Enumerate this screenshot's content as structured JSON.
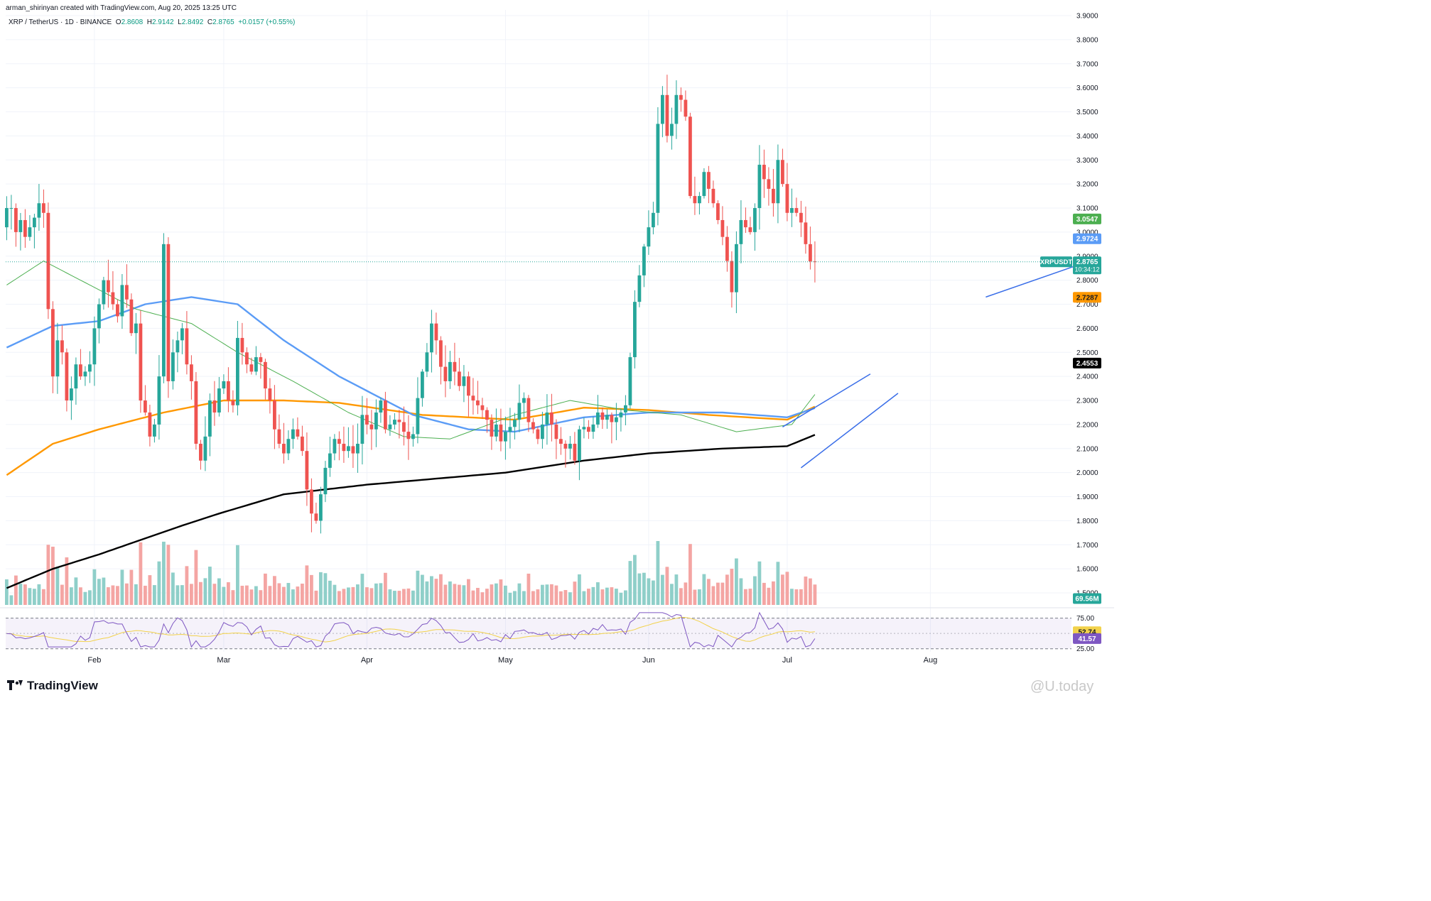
{
  "header": {
    "credit": "arman_shirinyan created with TradingView.com, Aug 20, 2025 13:25 UTC",
    "symbol": "XRP / TetherUS · 1D · BINANCE",
    "ohlc": [
      {
        "k": "O",
        "v": "2.8608"
      },
      {
        "k": "H",
        "v": "2.9142"
      },
      {
        "k": "L",
        "v": "2.8492"
      },
      {
        "k": "C",
        "v": "2.8765"
      }
    ],
    "change": "+0.0157 (+0.55%)"
  },
  "footer": {
    "brand": "TradingView",
    "watermark": "@U.today"
  },
  "colors": {
    "up": "#26a69a",
    "down": "#ef5350",
    "upVol": "#8fcfc9",
    "downVol": "#f4a5a3",
    "ma20": "#4caf50",
    "ma50": "#5b9cf6",
    "ma100": "#ff9800",
    "ma200": "#000000",
    "trend": "#3a6ee8",
    "rsi": "#7e57c2",
    "rsiMa": "#f2d24b"
  },
  "chart_data": {
    "type": "candlestick",
    "price_ylim": [
      1.45,
      3.9
    ],
    "price_ticks": [
      "3.9000",
      "3.8000",
      "3.7000",
      "3.6000",
      "3.5000",
      "3.4000",
      "3.3000",
      "3.2000",
      "3.1000",
      "3.0000",
      "2.9000",
      "2.8000",
      "2.7000",
      "2.6000",
      "2.5000",
      "2.4000",
      "2.3000",
      "2.2000",
      "2.1000",
      "2.0000",
      "1.9000",
      "1.8000",
      "1.7000",
      "1.6000",
      "1.5000"
    ],
    "x_labels": [
      {
        "label": "Feb",
        "day": 19
      },
      {
        "label": "Mar",
        "day": 47
      },
      {
        "label": "Apr",
        "day": 78
      },
      {
        "label": "May",
        "day": 108
      },
      {
        "label": "Jun",
        "day": 139
      },
      {
        "label": "Jul",
        "day": 169
      },
      {
        "label": "Aug",
        "day": 200
      }
    ],
    "candles": {
      "start": "2025-01-01",
      "close": [
        3.1,
        3.1,
        3.0,
        3.05,
        2.98,
        3.02,
        3.06,
        3.12,
        3.08,
        2.68,
        2.4,
        2.55,
        2.5,
        2.3,
        2.35,
        2.45,
        2.4,
        2.42,
        2.45,
        2.6,
        2.7,
        2.8,
        2.75,
        2.7,
        2.65,
        2.78,
        2.72,
        2.58,
        2.62,
        2.3,
        2.25,
        2.15,
        2.2,
        2.4,
        2.95,
        2.38,
        2.5,
        2.55,
        2.6,
        2.45,
        2.38,
        2.12,
        2.05,
        2.15,
        2.3,
        2.25,
        2.35,
        2.38,
        2.3,
        2.28,
        2.56,
        2.5,
        2.45,
        2.42,
        2.48,
        2.46,
        2.35,
        2.3,
        2.18,
        2.12,
        2.08,
        2.14,
        2.18,
        2.15,
        2.09,
        1.93,
        1.83,
        1.8,
        1.91,
        2.02,
        2.08,
        2.14,
        2.12,
        2.09,
        2.11,
        2.08,
        2.12,
        2.24,
        2.2,
        2.18,
        2.25,
        2.3,
        2.18,
        2.2,
        2.22,
        2.21,
        2.17,
        2.14,
        2.16,
        2.31,
        2.42,
        2.5,
        2.62,
        2.55,
        2.44,
        2.38,
        2.46,
        2.42,
        2.36,
        2.4,
        2.32,
        2.3,
        2.28,
        2.26,
        2.22,
        2.15,
        2.2,
        2.13,
        2.17,
        2.19,
        2.22,
        2.29,
        2.31,
        2.21,
        2.18,
        2.14,
        2.2,
        2.25,
        2.2,
        2.14,
        2.12,
        2.1,
        2.12,
        2.05,
        2.18,
        2.19,
        2.17,
        2.2,
        2.25,
        2.22,
        2.24,
        2.21,
        2.23,
        2.25,
        2.28,
        2.48,
        2.71,
        2.82,
        2.94,
        3.02,
        3.08,
        3.45,
        3.57,
        3.4,
        3.45,
        3.57,
        3.55,
        3.48,
        3.15,
        3.12,
        3.15,
        3.25,
        3.18,
        3.12,
        3.05,
        2.98,
        2.88,
        2.75,
        2.95,
        3.05,
        3.02,
        3.0,
        3.1,
        3.28,
        3.22,
        3.18,
        3.12,
        3.3,
        3.2,
        3.08,
        3.1,
        3.08,
        3.04,
        2.95,
        2.8783
      ],
      "volume_range_M": [
        30,
        230
      ],
      "volume_last_M": 69.56
    },
    "moving_averages": [
      {
        "name": "MA20",
        "last": 3.0547
      },
      {
        "name": "MA50",
        "last": 2.9724
      },
      {
        "name": "MA100",
        "last": 2.7287
      },
      {
        "name": "MA200",
        "last": 2.4553
      }
    ],
    "trendlines": [
      {
        "from": [
          "2025-06-22",
          2.02
        ],
        "to": [
          "2025-07-13",
          2.33
        ]
      },
      {
        "from": [
          "2025-06-18",
          2.19
        ],
        "to": [
          "2025-07-07",
          2.41
        ]
      },
      {
        "from": [
          "2025-08-01",
          2.73
        ],
        "to": [
          "2025-08-22",
          2.87
        ]
      }
    ],
    "rsi": {
      "ticks": [
        "75.00",
        "25.00"
      ],
      "levels": [
        75,
        25
      ],
      "value": 41.57,
      "ma": 52.74
    },
    "price_label": {
      "name": "XRPUSDT",
      "value": "2.8765",
      "countdown": "10:34:12"
    },
    "price_badges": [
      "3.0547",
      "2.9724",
      "2.7287",
      "2.4553"
    ],
    "volume_badge": "69.56M",
    "rsi_badges": [
      "52.74",
      "41.57"
    ]
  }
}
